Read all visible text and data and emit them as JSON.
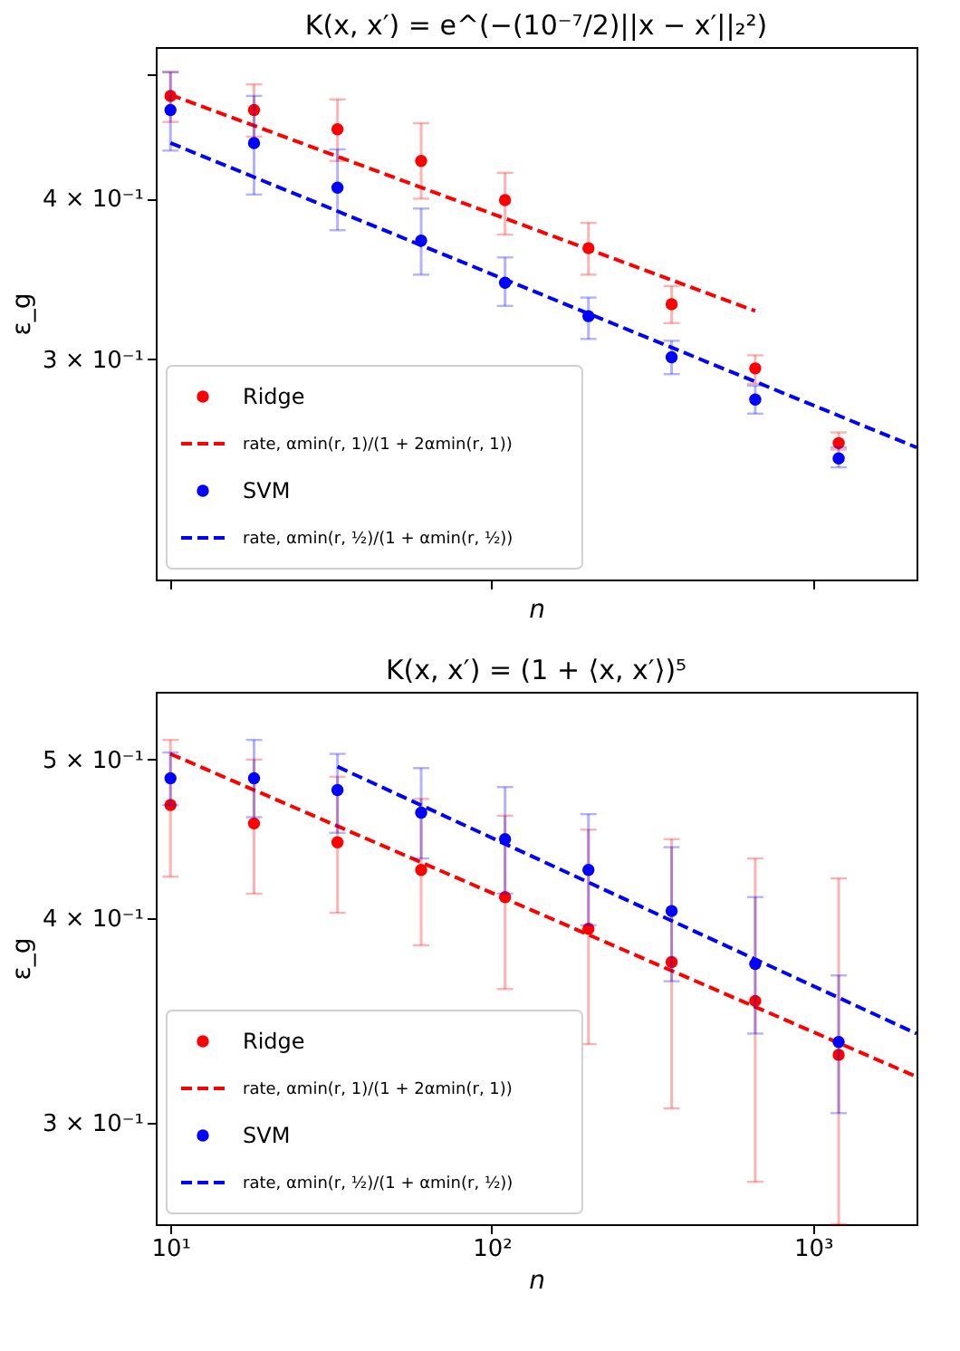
{
  "chart_data": [
    {
      "type": "scatter",
      "title": "K(x, x′) = e^(−(10⁻⁷/2)||x − x′||₂²)",
      "xlabel": "n",
      "ylabel": "ε_g",
      "log": "xy",
      "xlim": [
        9,
        2100
      ],
      "xticks": [
        {
          "value": 10,
          "label": null
        },
        {
          "value": 100,
          "label": null
        },
        {
          "value": 1000,
          "label": null
        }
      ],
      "ylim": [
        0.202,
        0.525
      ],
      "yticks": [
        {
          "value": 0.5,
          "label": null
        },
        {
          "value": 0.4,
          "label": "4 × 10⁻¹"
        },
        {
          "value": 0.3,
          "label": "3 × 10⁻¹"
        }
      ],
      "tick_labels": "y",
      "legend": "bottom left",
      "series": [
        {
          "name": "Ridge",
          "marker": "circle",
          "color": "#ff0000",
          "x": [
            10,
            18.2,
            33.1,
            60.3,
            110,
            200,
            363,
            661,
            1202
          ],
          "values": [
            0.481,
            0.469,
            0.453,
            0.428,
            0.399,
            0.366,
            0.331,
            0.295,
            0.258
          ],
          "errors": [
            [
              0.459,
              0.502
            ],
            [
              0.447,
              0.491
            ],
            [
              0.428,
              0.478
            ],
            [
              0.4,
              0.458
            ],
            [
              0.375,
              0.419
            ],
            [
              0.349,
              0.383
            ],
            [
              0.32,
              0.342
            ],
            [
              0.287,
              0.302
            ],
            [
              0.255,
              0.263
            ]
          ]
        },
        {
          "name": "rate, αmin(r, 1)/(1 + 2αmin(r, 1))",
          "type": "line",
          "marker": "none",
          "line_style": "dashed",
          "color": "#ff0000",
          "x": [
            10,
            661
          ],
          "values": [
            0.482,
            0.327
          ]
        },
        {
          "name": "SVM",
          "marker": "circle",
          "color": "#0000ff",
          "x": [
            10,
            18.2,
            33.1,
            60.3,
            110,
            200,
            363,
            661,
            1202
          ],
          "values": [
            0.469,
            0.442,
            0.408,
            0.371,
            0.344,
            0.324,
            0.301,
            0.279,
            0.251
          ],
          "errors": [
            [
              0.436,
              0.502
            ],
            [
              0.403,
              0.481
            ],
            [
              0.378,
              0.437
            ],
            [
              0.349,
              0.393
            ],
            [
              0.33,
              0.36
            ],
            [
              0.311,
              0.335
            ],
            [
              0.292,
              0.31
            ],
            [
              0.272,
              0.286
            ],
            [
              0.247,
              0.256
            ]
          ]
        },
        {
          "name": "rate, αmin(r, ½)/(1 + αmin(r, ½))",
          "type": "line",
          "marker": "none",
          "line_style": "dashed",
          "color": "#0000ff",
          "x": [
            10,
            2100
          ],
          "values": [
            0.442,
            0.256
          ]
        }
      ]
    },
    {
      "type": "scatter",
      "title": "K(x, x′) = (1 + ⟨x, x′⟩)⁵",
      "xlabel": "n",
      "ylabel": "ε_g",
      "log": "xy",
      "xlim": [
        9,
        2100
      ],
      "xticks": [
        {
          "value": 10,
          "label": "10¹"
        },
        {
          "value": 100,
          "label": "10²"
        },
        {
          "value": 1000,
          "label": "10³"
        }
      ],
      "ylim": [
        0.26,
        0.55
      ],
      "yticks": [
        {
          "value": 0.5,
          "label": "5 × 10⁻¹"
        },
        {
          "value": 0.4,
          "label": "4 × 10⁻¹"
        },
        {
          "value": 0.3,
          "label": "3 × 10⁻¹"
        }
      ],
      "legend": "bottom left",
      "series": [
        {
          "name": "Ridge",
          "marker": "circle",
          "color": "#ff0000",
          "x": [
            10,
            18.2,
            33.1,
            60.3,
            110,
            200,
            363,
            661,
            1202
          ],
          "values": [
            0.469,
            0.457,
            0.445,
            0.428,
            0.412,
            0.394,
            0.376,
            0.356,
            0.33
          ],
          "errors": [
            [
              0.424,
              0.514
            ],
            [
              0.414,
              0.5
            ],
            [
              0.403,
              0.488
            ],
            [
              0.385,
              0.473
            ],
            [
              0.362,
              0.462
            ],
            [
              0.335,
              0.453
            ],
            [
              0.306,
              0.447
            ],
            [
              0.276,
              0.435
            ],
            [
              0.26,
              0.423
            ]
          ]
        },
        {
          "name": "rate, αmin(r, 1)/(1 + 2αmin(r, 1))",
          "type": "line",
          "marker": "none",
          "line_style": "dashed",
          "color": "#ff0000",
          "x": [
            10,
            2100
          ],
          "values": [
            0.504,
            0.32
          ]
        },
        {
          "name": "SVM",
          "marker": "circle",
          "color": "#0000ff",
          "x": [
            10,
            18.2,
            33.1,
            60.3,
            110,
            200,
            363,
            661,
            1202
          ],
          "values": [
            0.487,
            0.487,
            0.479,
            0.464,
            0.447,
            0.428,
            0.404,
            0.375,
            0.336
          ],
          "errors": [
            [
              0.469,
              0.505
            ],
            [
              0.461,
              0.514
            ],
            [
              0.451,
              0.504
            ],
            [
              0.435,
              0.494
            ],
            [
              0.414,
              0.481
            ],
            [
              0.396,
              0.463
            ],
            [
              0.366,
              0.442
            ],
            [
              0.34,
              0.412
            ],
            [
              0.304,
              0.369
            ]
          ]
        },
        {
          "name": "rate, αmin(r, ½)/(1 + αmin(r, ½))",
          "type": "line",
          "marker": "none",
          "line_style": "dashed",
          "color": "#0000ff",
          "x": [
            33.1,
            2100
          ],
          "values": [
            0.495,
            0.34
          ]
        }
      ]
    }
  ]
}
